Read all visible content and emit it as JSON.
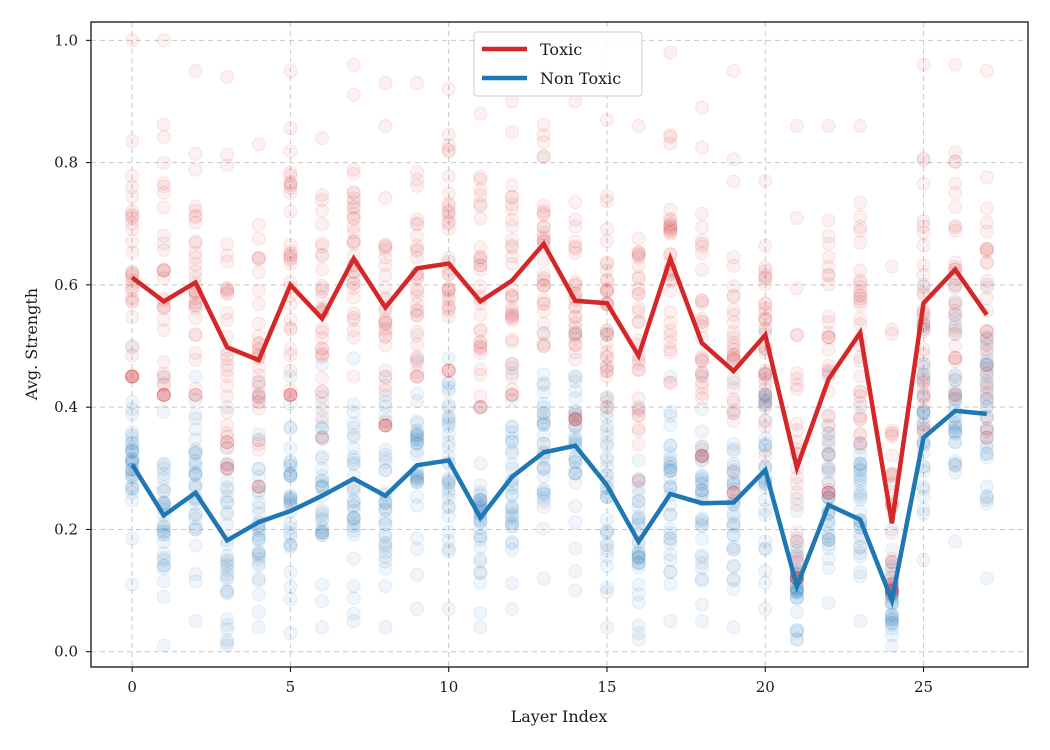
{
  "chart_data": {
    "type": "line",
    "title": "",
    "xlabel": "Layer Index",
    "ylabel": "Avg. Strength",
    "xlim": [
      -1.3,
      28.3
    ],
    "ylim": [
      -0.025,
      1.03
    ],
    "xticks": [
      0,
      5,
      10,
      15,
      20,
      25
    ],
    "xtick_labels": [
      "0",
      "5",
      "10",
      "15",
      "20",
      "25"
    ],
    "yticks": [
      0.0,
      0.2,
      0.4,
      0.6,
      0.8,
      1.0
    ],
    "ytick_labels": [
      "0.0",
      "0.2",
      "0.4",
      "0.6",
      "0.8",
      "1.0"
    ],
    "grid": true,
    "legend_position": "top-center",
    "x": [
      0,
      1,
      2,
      3,
      4,
      5,
      6,
      7,
      8,
      9,
      10,
      11,
      12,
      13,
      14,
      15,
      16,
      17,
      18,
      19,
      20,
      21,
      22,
      23,
      24,
      25,
      26,
      27
    ],
    "series": [
      {
        "name": "Toxic",
        "color": "#d62728",
        "values": [
          0.612,
          0.573,
          0.604,
          0.498,
          0.477,
          0.6,
          0.545,
          0.643,
          0.563,
          0.627,
          0.635,
          0.573,
          0.607,
          0.667,
          0.574,
          0.57,
          0.484,
          0.643,
          0.505,
          0.459,
          0.518,
          0.301,
          0.446,
          0.522,
          0.21,
          0.57,
          0.625,
          0.551
        ],
        "scatter_spread": [
          [
            0.45,
            1.0
          ],
          [
            0.42,
            1.0
          ],
          [
            0.42,
            0.95
          ],
          [
            0.3,
            0.94
          ],
          [
            0.27,
            0.83
          ],
          [
            0.42,
            0.95
          ],
          [
            0.35,
            0.84
          ],
          [
            0.45,
            0.96
          ],
          [
            0.37,
            0.93
          ],
          [
            0.45,
            0.93
          ],
          [
            0.46,
            0.92
          ],
          [
            0.4,
            0.88
          ],
          [
            0.42,
            0.9
          ],
          [
            0.5,
            0.95
          ],
          [
            0.38,
            0.9
          ],
          [
            0.4,
            0.87
          ],
          [
            0.28,
            0.86
          ],
          [
            0.44,
            0.98
          ],
          [
            0.32,
            0.89
          ],
          [
            0.26,
            0.95
          ],
          [
            0.32,
            0.77
          ],
          [
            0.12,
            0.86
          ],
          [
            0.26,
            0.86
          ],
          [
            0.34,
            0.86
          ],
          [
            0.1,
            0.63
          ],
          [
            0.36,
            0.96
          ],
          [
            0.42,
            0.96
          ],
          [
            0.35,
            0.95
          ]
        ]
      },
      {
        "name": "Non Toxic",
        "color": "#1f77b4",
        "values": [
          0.306,
          0.223,
          0.26,
          0.182,
          0.212,
          0.23,
          0.255,
          0.283,
          0.255,
          0.305,
          0.313,
          0.219,
          0.286,
          0.326,
          0.337,
          0.272,
          0.18,
          0.258,
          0.243,
          0.244,
          0.297,
          0.107,
          0.24,
          0.216,
          0.084,
          0.35,
          0.394,
          0.389
        ],
        "scatter_spread": [
          [
            0.11,
            0.5
          ],
          [
            0.01,
            0.45
          ],
          [
            0.05,
            0.45
          ],
          [
            0.01,
            0.4
          ],
          [
            0.04,
            0.44
          ],
          [
            0.03,
            0.45
          ],
          [
            0.04,
            0.47
          ],
          [
            0.05,
            0.48
          ],
          [
            0.04,
            0.45
          ],
          [
            0.07,
            0.48
          ],
          [
            0.07,
            0.48
          ],
          [
            0.04,
            0.4
          ],
          [
            0.07,
            0.47
          ],
          [
            0.12,
            0.52
          ],
          [
            0.1,
            0.52
          ],
          [
            0.04,
            0.52
          ],
          [
            0.02,
            0.4
          ],
          [
            0.05,
            0.45
          ],
          [
            0.05,
            0.45
          ],
          [
            0.04,
            0.44
          ],
          [
            0.07,
            0.52
          ],
          [
            0.02,
            0.25
          ],
          [
            0.08,
            0.45
          ],
          [
            0.05,
            0.4
          ],
          [
            0.01,
            0.2
          ],
          [
            0.15,
            0.6
          ],
          [
            0.18,
            0.6
          ],
          [
            0.12,
            0.6
          ]
        ]
      }
    ]
  }
}
